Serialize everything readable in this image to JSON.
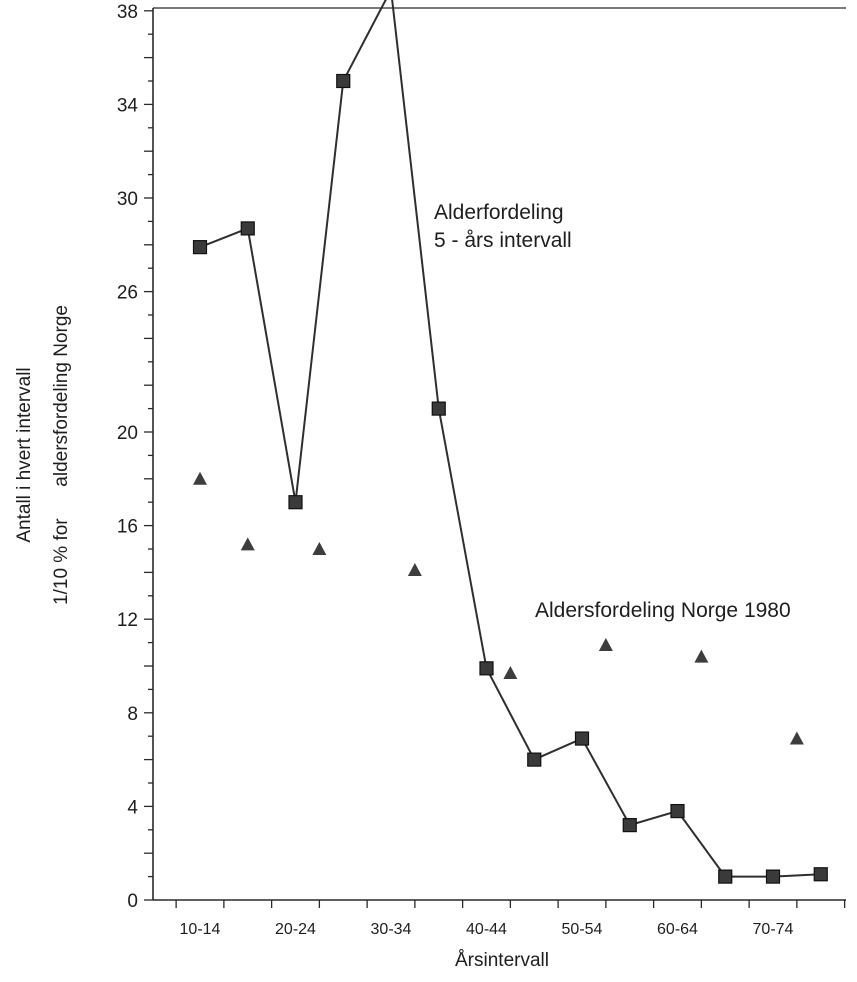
{
  "chart_data": {
    "type": "line",
    "xlabel": "Årsintervall",
    "ylabel": [
      "Antall i hvert intervall",
      "1/10 % for      aldersfordeling Norge"
    ],
    "ylim": [
      0,
      40
    ],
    "yticks": [
      0,
      4,
      8,
      12,
      16,
      20,
      26,
      30,
      34,
      38
    ],
    "x_tick_labels": [
      "10-14",
      "20-24",
      "30-34",
      "40-44",
      "50-54",
      "60-64",
      "70-74"
    ],
    "series": [
      {
        "name": "Alderfordeling 5 - års intervall",
        "marker": "square",
        "connected": true,
        "x": [
          12,
          17,
          22,
          27,
          32,
          37,
          42,
          47,
          52,
          57,
          62,
          67,
          72,
          77
        ],
        "values": [
          27.9,
          28.7,
          17,
          35,
          38.9,
          21,
          9.9,
          6,
          6.9,
          3.2,
          3.8,
          1,
          1,
          1.1
        ]
      },
      {
        "name": "Aldersfordeling Norge 1980",
        "marker": "triangle",
        "connected": false,
        "x": [
          12,
          17,
          24.5,
          34.5,
          44.5,
          54.5,
          64.5,
          74.5
        ],
        "values": [
          18,
          15.2,
          15,
          14.1,
          9.7,
          10.9,
          10.4,
          6.9
        ]
      }
    ],
    "annotations": [
      {
        "lines": [
          "Alderfordeling",
          "5 - års intervall"
        ],
        "series": 0
      },
      {
        "lines": [
          "Aldersfordeling Norge 1980"
        ],
        "series": 1
      }
    ]
  }
}
